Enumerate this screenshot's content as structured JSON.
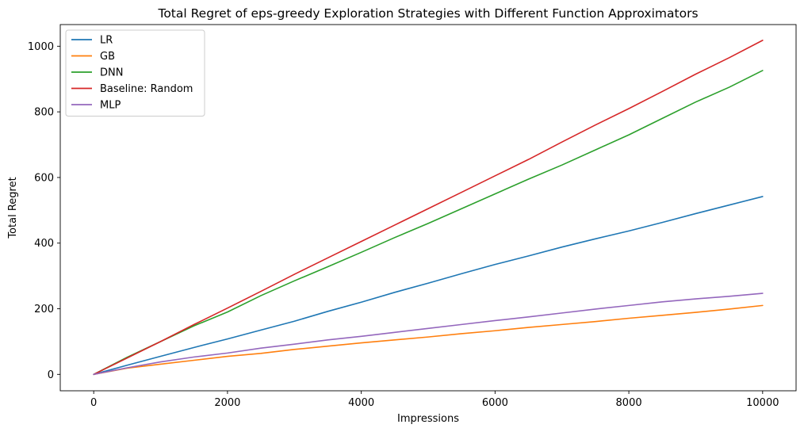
{
  "chart_data": {
    "type": "line",
    "title": "Total Regret of eps-greedy Exploration Strategies with Different Function Approximators",
    "xlabel": "Impressions",
    "ylabel": "Total Regret",
    "xlim": [
      -500,
      10500
    ],
    "ylim": [
      -50,
      1066
    ],
    "xticks": [
      0,
      2000,
      4000,
      6000,
      8000,
      10000
    ],
    "xtick_labels": [
      "0",
      "2000",
      "4000",
      "6000",
      "8000",
      "10000"
    ],
    "yticks": [
      0,
      200,
      400,
      600,
      800,
      1000
    ],
    "ytick_labels": [
      "0",
      "200",
      "400",
      "600",
      "800",
      "1000"
    ],
    "grid": false,
    "legend_position": "top-left",
    "series": [
      {
        "name": "LR",
        "color": "#1f77b4",
        "x": [
          0,
          500,
          1000,
          1500,
          2000,
          2500,
          3000,
          3500,
          4000,
          4500,
          5000,
          5500,
          6000,
          6500,
          7000,
          7500,
          8000,
          8500,
          9000,
          9500,
          10000
        ],
        "values": [
          0,
          28,
          55,
          82,
          108,
          135,
          162,
          192,
          220,
          250,
          278,
          307,
          335,
          361,
          388,
          413,
          437,
          463,
          490,
          516,
          542
        ]
      },
      {
        "name": "GB",
        "color": "#ff7f0e",
        "x": [
          0,
          500,
          1000,
          1500,
          2000,
          2500,
          3000,
          3500,
          4000,
          4500,
          5000,
          5500,
          6000,
          6500,
          7000,
          7500,
          8000,
          8500,
          9000,
          9500,
          10000
        ],
        "values": [
          0,
          19,
          31,
          43,
          55,
          64,
          76,
          86,
          96,
          105,
          114,
          124,
          133,
          143,
          152,
          161,
          171,
          180,
          189,
          199,
          210
        ]
      },
      {
        "name": "DNN",
        "color": "#2ca02c",
        "x": [
          0,
          500,
          1000,
          1500,
          2000,
          2500,
          3000,
          3500,
          4000,
          4500,
          5000,
          5500,
          6000,
          6500,
          7000,
          7500,
          8000,
          8500,
          9000,
          9500,
          10000
        ],
        "values": [
          0,
          52,
          100,
          148,
          190,
          240,
          285,
          328,
          372,
          417,
          460,
          505,
          550,
          595,
          638,
          684,
          730,
          780,
          830,
          875,
          926
        ]
      },
      {
        "name": "Baseline: Random",
        "color": "#d62728",
        "x": [
          0,
          500,
          1000,
          1500,
          2000,
          2500,
          3000,
          3500,
          4000,
          4500,
          5000,
          5500,
          6000,
          6500,
          7000,
          7500,
          8000,
          8500,
          9000,
          9500,
          10000
        ],
        "values": [
          0,
          50,
          100,
          152,
          202,
          253,
          305,
          355,
          405,
          455,
          505,
          555,
          605,
          655,
          708,
          760,
          810,
          862,
          915,
          965,
          1018
        ]
      },
      {
        "name": "MLP",
        "color": "#9467bd",
        "x": [
          0,
          500,
          1000,
          1500,
          2000,
          2500,
          3000,
          3500,
          4000,
          4500,
          5000,
          5500,
          6000,
          6500,
          7000,
          7500,
          8000,
          8500,
          9000,
          9500,
          10000
        ],
        "values": [
          0,
          20,
          38,
          53,
          65,
          80,
          92,
          105,
          116,
          128,
          140,
          152,
          164,
          175,
          187,
          199,
          210,
          221,
          230,
          238,
          247
        ]
      }
    ]
  }
}
